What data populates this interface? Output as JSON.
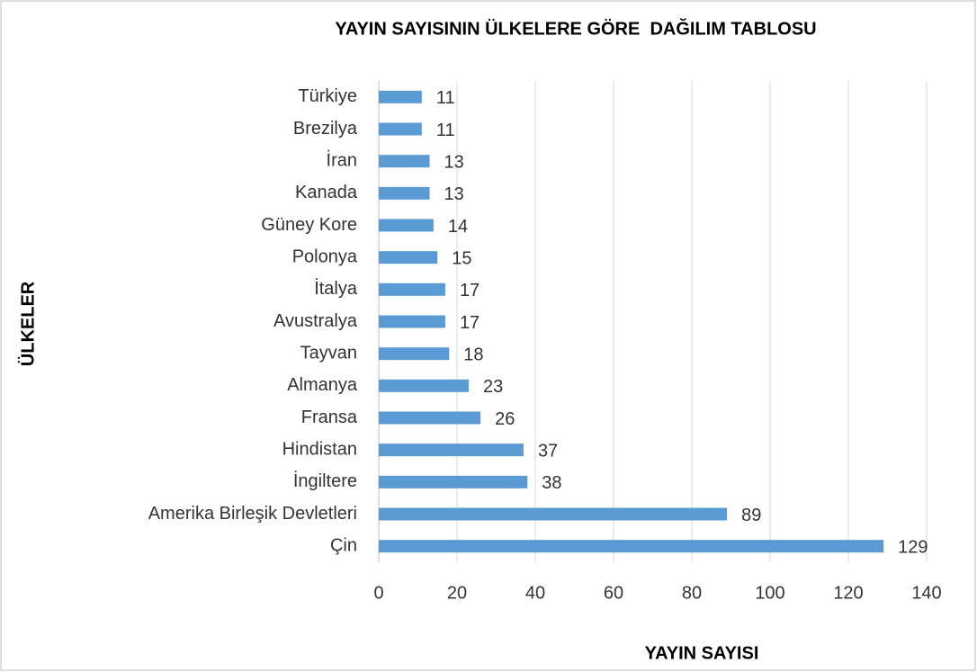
{
  "chart_data": {
    "type": "bar",
    "orientation": "horizontal",
    "title": "YAYIN SAYISININ ÜLKELERE GÖRE  DAĞILIM TABLOSU",
    "x_label": "YAYIN SAYISI",
    "y_label": "ÜLKELER",
    "categories": [
      "Türkiye",
      "Brezilya",
      "İran",
      "Kanada",
      "Güney Kore",
      "Polonya",
      "İtalya",
      "Avustralya",
      "Tayvan",
      "Almanya",
      "Fransa",
      "Hindistan",
      "İngiltere",
      "Amerika Birleşik Devletleri",
      "Çin"
    ],
    "values": [
      11,
      11,
      13,
      13,
      14,
      15,
      17,
      17,
      18,
      23,
      26,
      37,
      38,
      89,
      129
    ],
    "color": "#5b9bd5",
    "xlim": [
      0,
      140
    ],
    "xticks": [
      0,
      20,
      40,
      60,
      80,
      100,
      120,
      140
    ],
    "grid": true
  }
}
